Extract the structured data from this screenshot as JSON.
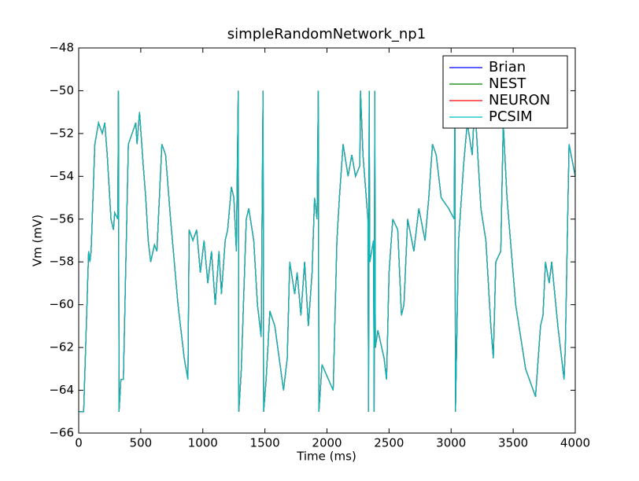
{
  "chart_data": {
    "type": "line",
    "title": "simpleRandomNetwork_np1",
    "xlabel": "Time (ms)",
    "ylabel": "Vm (mV)",
    "xlim": [
      0,
      4000
    ],
    "ylim": [
      -66,
      -48
    ],
    "xticks": [
      0,
      500,
      1000,
      1500,
      2000,
      2500,
      3000,
      3500,
      4000
    ],
    "yticks": [
      {
        "value": -66,
        "label": "−66"
      },
      {
        "value": -64,
        "label": "−64"
      },
      {
        "value": -62,
        "label": "−62"
      },
      {
        "value": -60,
        "label": "−60"
      },
      {
        "value": -58,
        "label": "−58"
      },
      {
        "value": -56,
        "label": "−56"
      },
      {
        "value": -54,
        "label": "−54"
      },
      {
        "value": -52,
        "label": "−52"
      },
      {
        "value": -50,
        "label": "−50"
      },
      {
        "value": -48,
        "label": "−48"
      }
    ],
    "legend": "upper right",
    "grid": false,
    "x": [
      0,
      40,
      80,
      90,
      100,
      130,
      160,
      190,
      210,
      230,
      260,
      280,
      290,
      315,
      320,
      325,
      340,
      360,
      400,
      430,
      460,
      470,
      490,
      520,
      540,
      560,
      580,
      610,
      630,
      670,
      700,
      740,
      800,
      850,
      880,
      890,
      920,
      950,
      980,
      1010,
      1040,
      1070,
      1100,
      1130,
      1150,
      1180,
      1200,
      1230,
      1250,
      1270,
      1280,
      1285,
      1290,
      1310,
      1350,
      1370,
      1410,
      1440,
      1470,
      1485,
      1490,
      1510,
      1540,
      1580,
      1650,
      1680,
      1700,
      1740,
      1760,
      1790,
      1820,
      1850,
      1880,
      1900,
      1920,
      1930,
      1935,
      1960,
      2050,
      2080,
      2100,
      2130,
      2170,
      2200,
      2230,
      2265,
      2270,
      2290,
      2330,
      2335,
      2340,
      2345,
      2375,
      2380,
      2385,
      2390,
      2410,
      2460,
      2480,
      2500,
      2530,
      2570,
      2600,
      2620,
      2650,
      2700,
      2740,
      2790,
      2820,
      2850,
      2880,
      2920,
      2980,
      3025,
      3030,
      3035,
      3060,
      3100,
      3130,
      3170,
      3190,
      3240,
      3280,
      3320,
      3340,
      3360,
      3400,
      3420,
      3450,
      3520,
      3600,
      3680,
      3720,
      3740,
      3760,
      3790,
      3810,
      3860,
      3910,
      3920,
      3950,
      4000
    ],
    "series": [
      {
        "name": "Brian",
        "color": "#0000ff",
        "values": [
          -65,
          -65,
          -57.5,
          -58,
          -57.5,
          -52.5,
          -51.5,
          -52,
          -51.5,
          -53,
          -56,
          -56.5,
          -55.7,
          -56,
          -50,
          -65,
          -63.5,
          -63.5,
          -52.5,
          -52,
          -51.5,
          -52.5,
          -51,
          -53.5,
          -55,
          -57,
          -58,
          -57.2,
          -57.5,
          -52.5,
          -53,
          -56,
          -60,
          -62.5,
          -63.5,
          -56.5,
          -57,
          -56.5,
          -58.5,
          -57,
          -59,
          -57.5,
          -60,
          -57.5,
          -59.5,
          -57,
          -56.5,
          -54.5,
          -55,
          -57.5,
          -52.5,
          -50,
          -65,
          -63,
          -56,
          -55.5,
          -57,
          -60,
          -61.5,
          -50,
          -65,
          -63.5,
          -60.3,
          -61,
          -64,
          -62.5,
          -58,
          -59.5,
          -58.5,
          -60.5,
          -58,
          -61,
          -58.5,
          -55,
          -56,
          -50,
          -65,
          -62.8,
          -64,
          -57,
          -55,
          -52.5,
          -54,
          -53,
          -54,
          -53.5,
          -50,
          -53,
          -56,
          -65,
          -50,
          -58,
          -57,
          -65,
          -50,
          -62,
          -61.2,
          -62.5,
          -63.5,
          -58.5,
          -56,
          -56.5,
          -60.5,
          -60,
          -56,
          -57.5,
          -55.5,
          -57,
          -55,
          -52.5,
          -53,
          -55,
          -55.5,
          -56,
          -50,
          -65,
          -57,
          -53.5,
          -51.5,
          -53,
          -50.5,
          -55.5,
          -57,
          -61,
          -62.5,
          -58,
          -57.5,
          -51.5,
          -55,
          -60,
          -63,
          -64.3,
          -61,
          -60.5,
          -58,
          -59,
          -58,
          -61,
          -63.5,
          -62,
          -52.5,
          -54
        ]
      },
      {
        "name": "NEST",
        "color": "#008000",
        "values": [
          -65,
          -65,
          -57.5,
          -58,
          -57.5,
          -52.5,
          -51.5,
          -52,
          -51.5,
          -53,
          -56,
          -56.5,
          -55.7,
          -56,
          -50,
          -65,
          -63.5,
          -63.5,
          -52.5,
          -52,
          -51.5,
          -52.5,
          -51,
          -53.5,
          -55,
          -57,
          -58,
          -57.2,
          -57.5,
          -52.5,
          -53,
          -56,
          -60,
          -62.5,
          -63.5,
          -56.5,
          -57,
          -56.5,
          -58.5,
          -57,
          -59,
          -57.5,
          -60,
          -57.5,
          -59.5,
          -57,
          -56.5,
          -54.5,
          -55,
          -57.5,
          -52.5,
          -50,
          -65,
          -63,
          -56,
          -55.5,
          -57,
          -60,
          -61.5,
          -50,
          -65,
          -63.5,
          -60.3,
          -61,
          -64,
          -62.5,
          -58,
          -59.5,
          -58.5,
          -60.5,
          -58,
          -61,
          -58.5,
          -55,
          -56,
          -50,
          -65,
          -62.8,
          -64,
          -57,
          -55,
          -52.5,
          -54,
          -53,
          -54,
          -53.5,
          -50,
          -53,
          -56,
          -65,
          -50,
          -58,
          -57,
          -65,
          -50,
          -62,
          -61.2,
          -62.5,
          -63.5,
          -58.5,
          -56,
          -56.5,
          -60.5,
          -60,
          -56,
          -57.5,
          -55.5,
          -57,
          -55,
          -52.5,
          -53,
          -55,
          -55.5,
          -56,
          -50,
          -65,
          -57,
          -53.5,
          -51.5,
          -53,
          -50.5,
          -55.5,
          -57,
          -61,
          -62.5,
          -58,
          -57.5,
          -51.5,
          -55,
          -60,
          -63,
          -64.3,
          -61,
          -60.5,
          -58,
          -59,
          -58,
          -61,
          -63.5,
          -62,
          -52.5,
          -54
        ]
      },
      {
        "name": "NEURON",
        "color": "#ff0000",
        "values": [
          -65,
          -65,
          -57.5,
          -58,
          -57.5,
          -52.5,
          -51.5,
          -52,
          -51.5,
          -53,
          -56,
          -56.5,
          -55.7,
          -56,
          -50,
          -65,
          -63.5,
          -63.5,
          -52.5,
          -52,
          -51.5,
          -52.5,
          -51,
          -53.5,
          -55,
          -57,
          -58,
          -57.2,
          -57.5,
          -52.5,
          -53,
          -56,
          -60,
          -62.5,
          -63.5,
          -56.5,
          -57,
          -56.5,
          -58.5,
          -57,
          -59,
          -57.5,
          -60,
          -57.5,
          -59.5,
          -57,
          -56.5,
          -54.5,
          -55,
          -57.5,
          -52.5,
          -50,
          -65,
          -63,
          -56,
          -55.5,
          -57,
          -60,
          -61.5,
          -50,
          -65,
          -63.5,
          -60.3,
          -61,
          -64,
          -62.5,
          -58,
          -59.5,
          -58.5,
          -60.5,
          -58,
          -61,
          -58.5,
          -55,
          -56,
          -50,
          -65,
          -62.8,
          -64,
          -57,
          -55,
          -52.5,
          -54,
          -53,
          -54,
          -53.5,
          -50,
          -53,
          -56,
          -65,
          -50,
          -58,
          -57,
          -65,
          -50,
          -62,
          -61.2,
          -62.5,
          -63.5,
          -58.5,
          -56,
          -56.5,
          -60.5,
          -60,
          -56,
          -57.5,
          -55.5,
          -57,
          -55,
          -52.5,
          -53,
          -55,
          -55.5,
          -56,
          -50,
          -65,
          -57,
          -53.5,
          -51.5,
          -53,
          -50.5,
          -55.5,
          -57,
          -61,
          -62.5,
          -58,
          -57.5,
          -51.5,
          -55,
          -60,
          -63,
          -64.3,
          -61,
          -60.5,
          -58,
          -59,
          -58,
          -61,
          -63.5,
          -62,
          -52.5,
          -54
        ]
      },
      {
        "name": "PCSIM",
        "color": "#00bfbf",
        "values": [
          -65,
          -65,
          -57.5,
          -58,
          -57.5,
          -52.5,
          -51.5,
          -52,
          -51.5,
          -53,
          -56,
          -56.5,
          -55.7,
          -56,
          -50,
          -65,
          -63.5,
          -63.5,
          -52.5,
          -52,
          -51.5,
          -52.5,
          -51,
          -53.5,
          -55,
          -57,
          -58,
          -57.2,
          -57.5,
          -52.5,
          -53,
          -56,
          -60,
          -62.5,
          -63.5,
          -56.5,
          -57,
          -56.5,
          -58.5,
          -57,
          -59,
          -57.5,
          -60,
          -57.5,
          -59.5,
          -57,
          -56.5,
          -54.5,
          -55,
          -57.5,
          -52.5,
          -50,
          -65,
          -63,
          -56,
          -55.5,
          -57,
          -60,
          -61.5,
          -50,
          -65,
          -63.5,
          -60.3,
          -61,
          -64,
          -62.5,
          -58,
          -59.5,
          -58.5,
          -60.5,
          -58,
          -61,
          -58.5,
          -55,
          -56,
          -50,
          -65,
          -62.8,
          -64,
          -57,
          -55,
          -52.5,
          -54,
          -53,
          -54,
          -53.5,
          -50,
          -53,
          -56,
          -65,
          -50,
          -58,
          -57,
          -65,
          -50,
          -62,
          -61.2,
          -62.5,
          -63.5,
          -58.5,
          -56,
          -56.5,
          -60.5,
          -60,
          -56,
          -57.5,
          -55.5,
          -57,
          -55,
          -52.5,
          -53,
          -55,
          -55.5,
          -56,
          -50,
          -65,
          -57,
          -53.5,
          -51.5,
          -53,
          -50.5,
          -55.5,
          -57,
          -61,
          -62.5,
          -58,
          -57.5,
          -51.5,
          -55,
          -60,
          -63,
          -64.3,
          -61,
          -60.5,
          -58,
          -59,
          -58,
          -61,
          -63.5,
          -62,
          -52.5,
          -54
        ]
      }
    ]
  }
}
